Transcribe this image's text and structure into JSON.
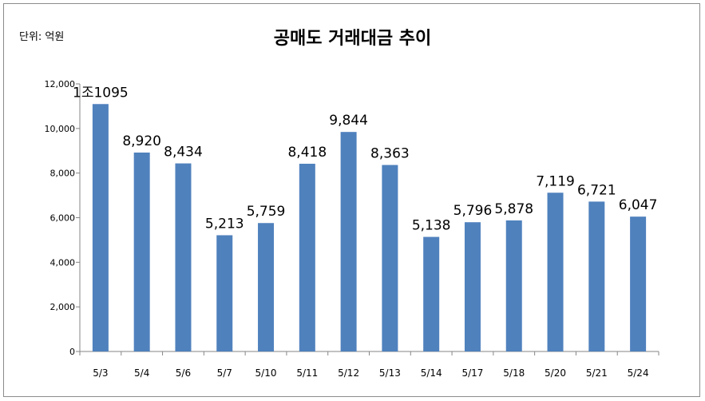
{
  "chart_data": {
    "type": "bar",
    "title": "공매도 거래대금 추이",
    "unit_label": "단위: 억원",
    "xlabel": "",
    "ylabel": "",
    "ylim": [
      0,
      12000
    ],
    "yticks": [
      0,
      2000,
      4000,
      6000,
      8000,
      10000,
      12000
    ],
    "ytick_labels": [
      "0",
      "2,000",
      "4,000",
      "6,000",
      "8,000",
      "10,000",
      "12,000"
    ],
    "categories": [
      "5/3",
      "5/4",
      "5/6",
      "5/7",
      "5/10",
      "5/11",
      "5/12",
      "5/13",
      "5/14",
      "5/17",
      "5/18",
      "5/20",
      "5/21",
      "5/24"
    ],
    "values": [
      11095,
      8920,
      8434,
      5213,
      5759,
      8418,
      9844,
      8363,
      5138,
      5796,
      5878,
      7119,
      6721,
      6047
    ],
    "data_labels": [
      "1조1095",
      "8,920",
      "8,434",
      "5,213",
      "5,759",
      "8,418",
      "9,844",
      "8,363",
      "5,138",
      "5,796",
      "5,878",
      "7,119",
      "6,721",
      "6,047"
    ],
    "bar_color": "#4f81bd",
    "grid": false,
    "legend": "none"
  }
}
